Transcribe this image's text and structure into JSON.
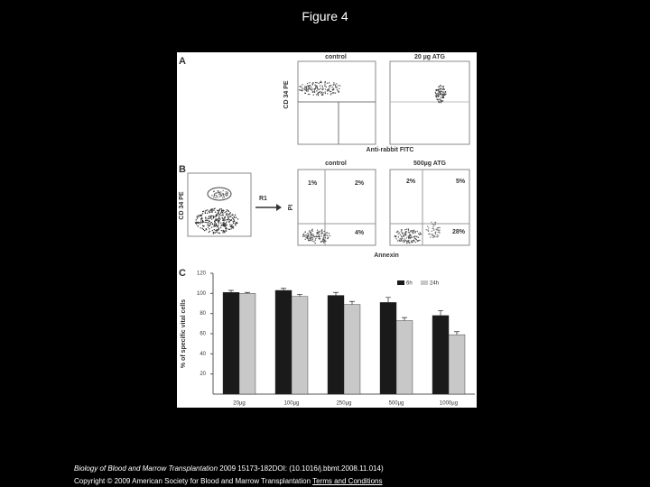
{
  "title": "Figure 4",
  "figure": {
    "panel_a": {
      "label": "A",
      "plot_titles": [
        "control",
        "20 µg ATG"
      ],
      "y_axis_label": "CD 34 PE",
      "x_axis_label": "Anti-rabbit FITC"
    },
    "panel_b": {
      "label": "B",
      "gate_plot_y_label": "CD 34 PE",
      "gate": "R1",
      "y_axis_label": "PI",
      "x_axis_label": "Annexin",
      "plots": [
        {
          "title": "control",
          "quadrants": [
            "1%",
            "2%",
            "4%"
          ]
        },
        {
          "title": "500µg ATG",
          "quadrants": [
            "2%",
            "5%",
            "28%"
          ]
        }
      ]
    },
    "panel_c": {
      "label": "C"
    }
  },
  "chart_data": {
    "type": "bar",
    "y_label": "% of specific vital cells",
    "categories": [
      "20µg",
      "100µg",
      "250µg",
      "500µg",
      "1000µg"
    ],
    "series": [
      {
        "name": "6h",
        "color": "#1a1a1a",
        "values": [
          101,
          103,
          98,
          91,
          78
        ],
        "errors": [
          2,
          2,
          3,
          5,
          5
        ]
      },
      {
        "name": "24h",
        "color": "#c8c8c8",
        "values": [
          100,
          97,
          89,
          73,
          59
        ],
        "errors": [
          1,
          2,
          3,
          3,
          3
        ]
      }
    ],
    "ylim": [
      0,
      120
    ],
    "yticks": [
      20,
      40,
      60,
      80,
      100,
      120
    ],
    "legend": "top-right"
  },
  "footer": {
    "journal": "Biology of Blood and Marrow Transplantation",
    "citation": " 2009 15173-182DOI: (10.1016/j.bbmt.2008.11.014)",
    "copyright": "Copyright © 2009 American Society for Blood and Marrow Transplantation ",
    "link": "Terms and Conditions"
  }
}
